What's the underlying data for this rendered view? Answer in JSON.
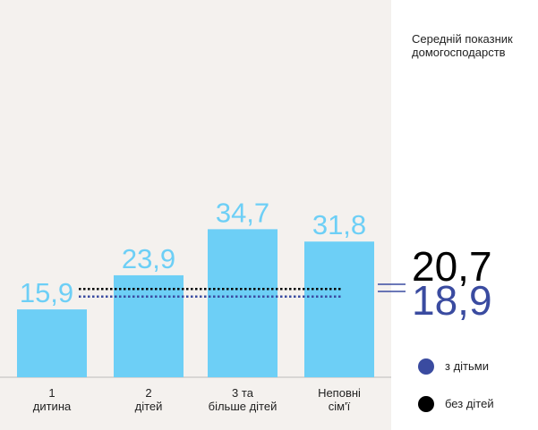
{
  "chart_data": {
    "type": "bar",
    "categories": [
      "1\nдитина",
      "2\nдітей",
      "3 та\nбільше дітей",
      "Неповні\nсім'ї"
    ],
    "values": [
      15.9,
      23.9,
      34.7,
      31.8
    ],
    "value_labels": [
      "15,9",
      "23,9",
      "34,7",
      "31,8"
    ],
    "color": "#6dcff6",
    "ylim": [
      0,
      88
    ],
    "reference": {
      "title": "Середній показник домогосподарств",
      "series": [
        {
          "name": "з дітьми",
          "color": "#3a4ba0",
          "value": 18.9,
          "value_label": "18,9"
        },
        {
          "name": "без дітей",
          "color": "#000000",
          "value": 20.7,
          "value_label": "20,7"
        }
      ]
    }
  }
}
